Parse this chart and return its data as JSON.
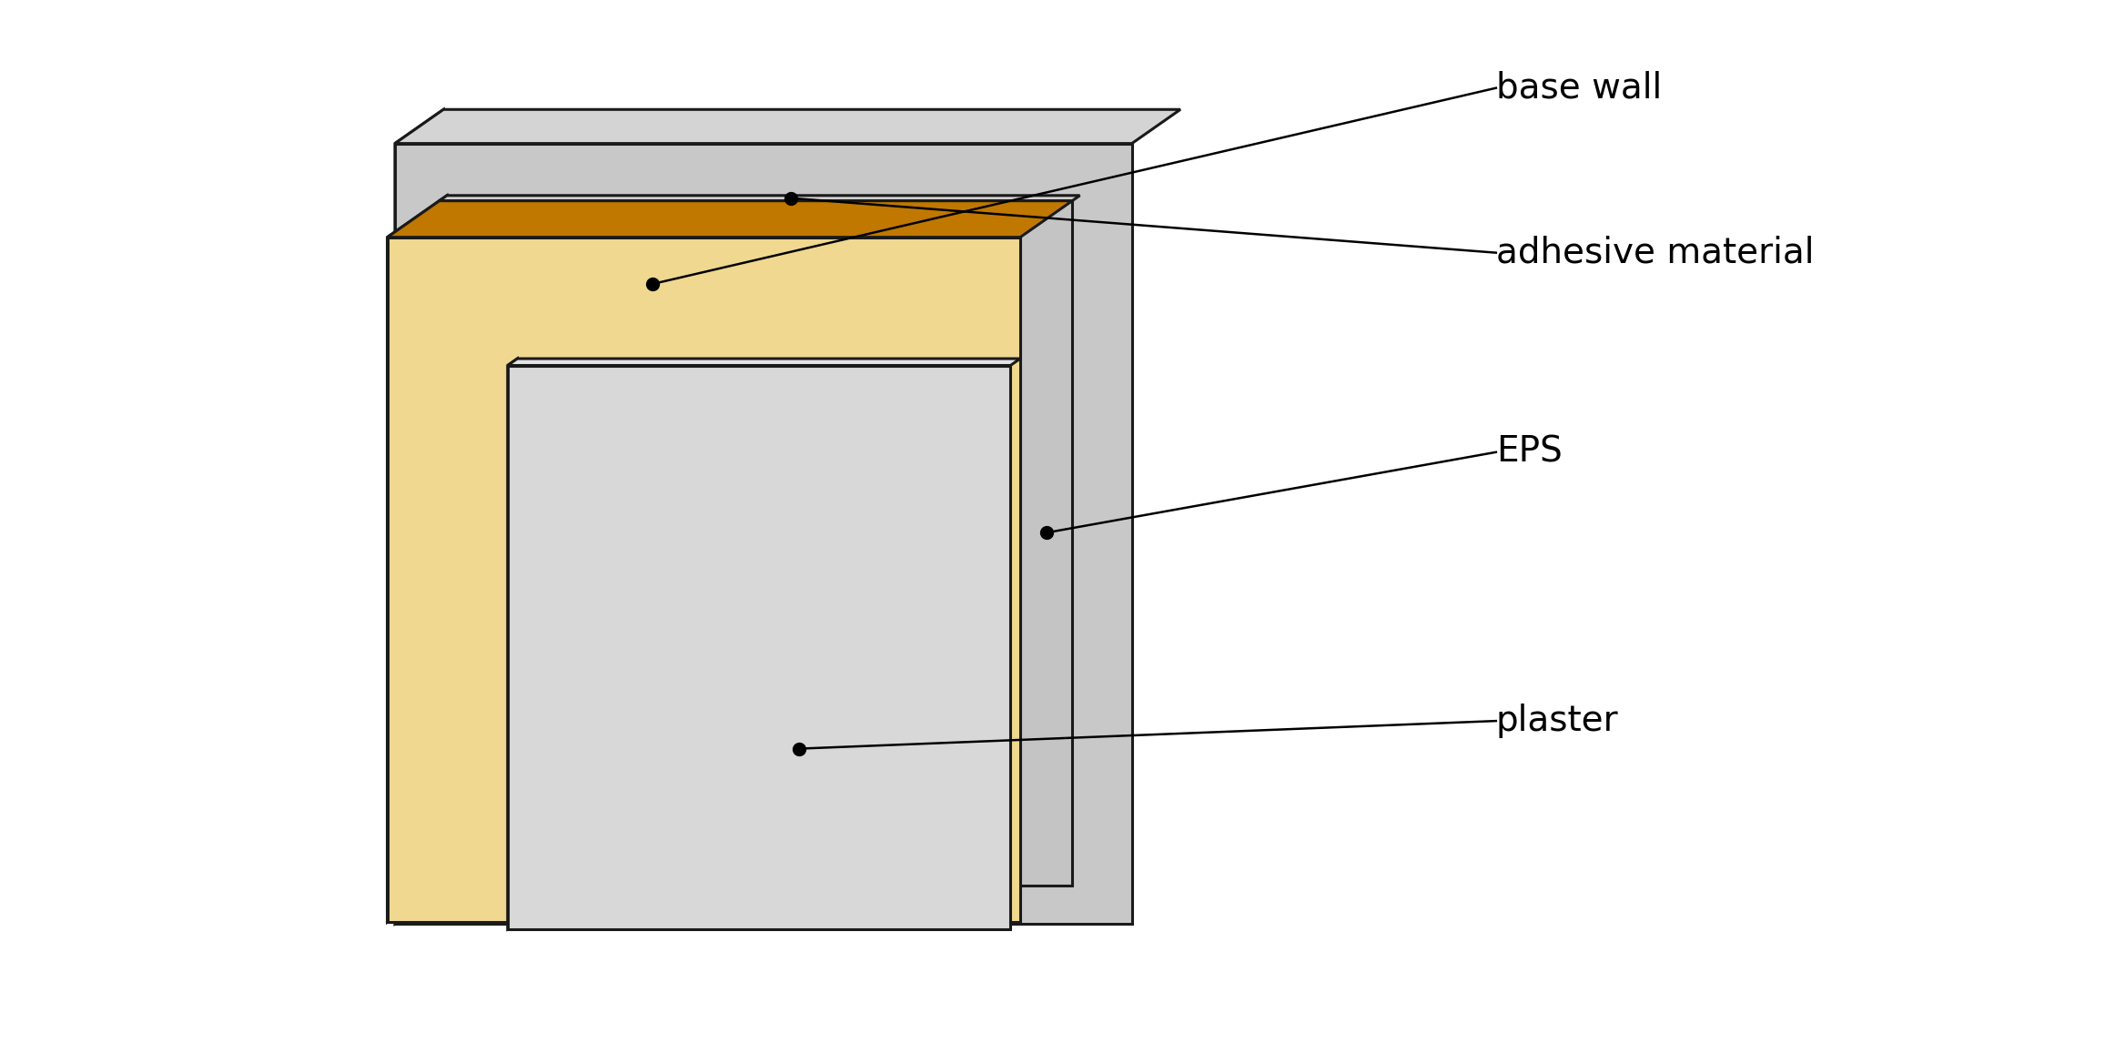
{
  "background_color": "#ffffff",
  "labels": {
    "base_wall": "base wall",
    "adhesive": "adhesive material",
    "eps": "EPS",
    "plaster": "plaster"
  },
  "colors": {
    "base_wall_front": "#c8c8c8",
    "base_wall_top": "#d4d4d4",
    "base_wall_left": "#b8b8b8",
    "adhesive_front": "#c4c4c4",
    "adhesive_top": "#d0d0d0",
    "adhesive_left": "#b0b0b0",
    "eps_front": "#f0d890",
    "eps_top": "#c07800",
    "eps_left": "#d4a040",
    "plaster_front": "#d8d8d8",
    "plaster_top": "#e4e4e4",
    "plaster_left": "#c4c4c4",
    "outline": "#1a1a1a",
    "annotation_line": "#000000",
    "dot": "#000000"
  },
  "font_size": 28,
  "figsize": [
    23.35,
    11.46
  ],
  "dpi": 100
}
